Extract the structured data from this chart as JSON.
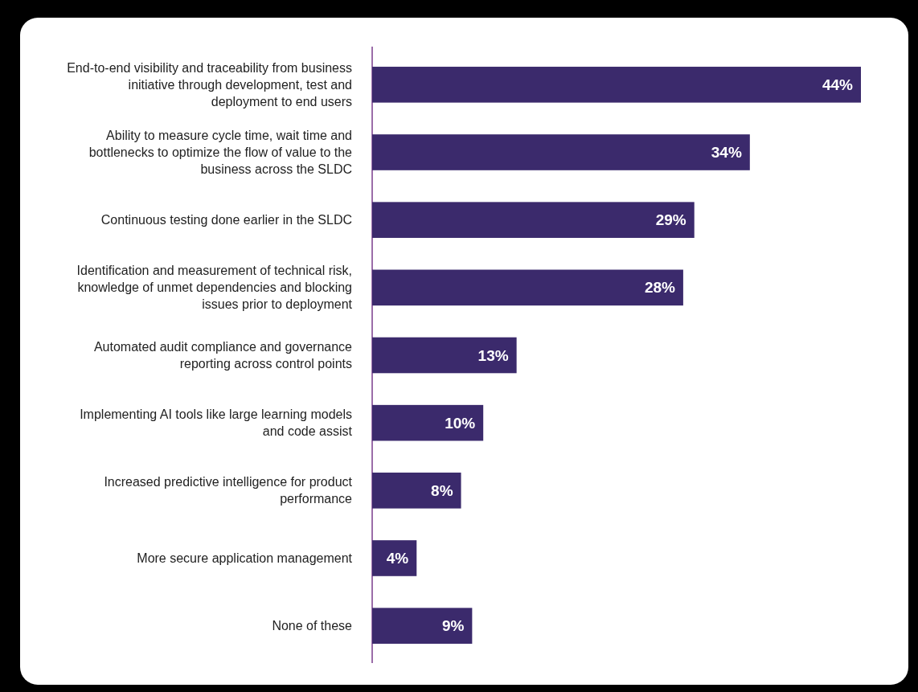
{
  "chart_data": {
    "type": "bar",
    "orientation": "horizontal",
    "color": "#3b2a6c",
    "categories": [
      "End-to-end visibility and traceability from business initiative through development, test and deployment to end users",
      "Ability to measure cycle time, wait time and bottlenecks to optimize the flow of value to the business across the SLDC",
      "Continuous testing done earlier in the SLDC",
      "Identification and measurement of technical risk, knowledge of unmet dependencies and blocking issues prior to deployment",
      "Automated audit compliance and governance reporting across control points",
      "Implementing AI tools like large learning models and code assist",
      "Increased predictive intelligence for product performance",
      "More secure application management",
      "None of these"
    ],
    "values": [
      44,
      34,
      29,
      28,
      13,
      10,
      8,
      4,
      9
    ],
    "value_labels": [
      "44%",
      "34%",
      "29%",
      "28%",
      "13%",
      "10%",
      "8%",
      "4%",
      "9%"
    ]
  }
}
